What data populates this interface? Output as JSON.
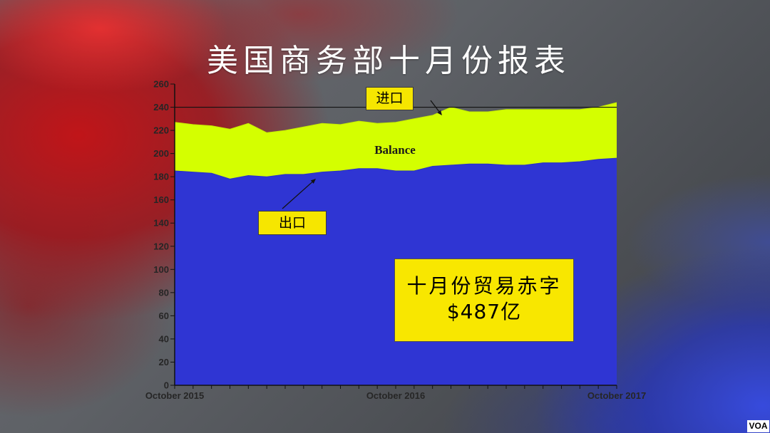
{
  "slide": {
    "logo": "VOA"
  },
  "chart_data": {
    "type": "area",
    "title": "美国商务部十月份报表",
    "x": [
      "2015-10",
      "2015-11",
      "2015-12",
      "2016-01",
      "2016-02",
      "2016-03",
      "2016-04",
      "2016-05",
      "2016-06",
      "2016-07",
      "2016-08",
      "2016-09",
      "2016-10",
      "2016-11",
      "2016-12",
      "2017-01",
      "2017-02",
      "2017-03",
      "2017-04",
      "2017-05",
      "2017-06",
      "2017-07",
      "2017-08",
      "2017-09",
      "2017-10"
    ],
    "x_ticks": [
      {
        "x": "2015-10",
        "label": "October 2015"
      },
      {
        "x": "2016-10",
        "label": "October 2016"
      },
      {
        "x": "2017-10",
        "label": "October 2017"
      }
    ],
    "ylim": [
      0,
      260
    ],
    "y_ticks": [
      0,
      20,
      40,
      60,
      80,
      100,
      120,
      140,
      160,
      180,
      200,
      220,
      240,
      260
    ],
    "hline": 240,
    "grid": false,
    "series": [
      {
        "name": "出口",
        "color": "#2f35d3",
        "values": [
          185,
          184,
          183,
          178,
          181,
          180,
          182,
          182,
          184,
          185,
          187,
          187,
          185,
          185,
          189,
          190,
          191,
          191,
          190,
          190,
          192,
          192,
          193,
          195,
          196
        ]
      },
      {
        "name": "进口",
        "color": "#d4ff00",
        "values": [
          227,
          225,
          224,
          221,
          226,
          218,
          220,
          223,
          226,
          225,
          228,
          226,
          227,
          230,
          233,
          240,
          236,
          236,
          238,
          238,
          238,
          238,
          238,
          240,
          244
        ]
      }
    ],
    "annotations": {
      "balance": "Balance",
      "callout_title": "十月份贸易赤字",
      "callout_value": "$487亿"
    }
  }
}
